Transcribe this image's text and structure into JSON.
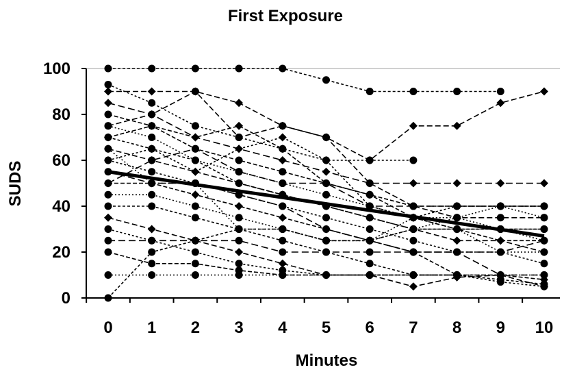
{
  "chart_data": {
    "type": "line",
    "title": "First Exposure",
    "xlabel": "Minutes",
    "ylabel": "SUDS",
    "xlim": [
      0,
      10
    ],
    "ylim": [
      0,
      100
    ],
    "x_ticks": [
      "0",
      "1",
      "2",
      "3",
      "4",
      "5",
      "6",
      "7",
      "8",
      "9",
      "10"
    ],
    "y_ticks": [
      "0",
      "20",
      "40",
      "60",
      "80",
      "100"
    ],
    "grid": "top border only",
    "legend": "none",
    "colors": {
      "series": "#000000",
      "axis": "#000000",
      "frame": "#a0a0a0"
    },
    "x": [
      0,
      1,
      2,
      3,
      4,
      5,
      6,
      7,
      8,
      9,
      10
    ],
    "trend_line": {
      "x": [
        0,
        10
      ],
      "y": [
        55,
        27
      ]
    },
    "series": [
      {
        "marker": "circle",
        "values": [
          100,
          100,
          100,
          100,
          100,
          95,
          90,
          90,
          90,
          90,
          null
        ]
      },
      {
        "marker": "diamond",
        "values": [
          90,
          90,
          90,
          85,
          75,
          70,
          60,
          75,
          75,
          85,
          90
        ]
      },
      {
        "marker": "circle",
        "values": [
          93,
          85,
          75,
          70,
          65,
          60,
          60,
          60,
          null,
          null,
          null
        ]
      },
      {
        "marker": "diamond",
        "values": [
          85,
          80,
          70,
          65,
          60,
          55,
          50,
          50,
          50,
          50,
          50
        ]
      },
      {
        "marker": "circle",
        "values": [
          80,
          75,
          65,
          60,
          55,
          50,
          45,
          40,
          40,
          40,
          40
        ]
      },
      {
        "marker": "circle",
        "values": [
          75,
          70,
          60,
          55,
          50,
          45,
          40,
          35,
          35,
          30,
          25
        ]
      },
      {
        "marker": "circle",
        "values": [
          70,
          65,
          60,
          50,
          45,
          40,
          35,
          30,
          30,
          30,
          30
        ]
      },
      {
        "marker": "diamond",
        "values": [
          65,
          60,
          55,
          50,
          45,
          40,
          35,
          30,
          25,
          25,
          20
        ]
      },
      {
        "marker": "circle",
        "values": [
          60,
          55,
          50,
          45,
          40,
          35,
          30,
          25,
          20,
          20,
          15
        ]
      },
      {
        "marker": "circle",
        "values": [
          55,
          50,
          50,
          45,
          40,
          30,
          25,
          20,
          20,
          10,
          10
        ]
      },
      {
        "marker": "diamond",
        "values": [
          50,
          50,
          45,
          40,
          35,
          30,
          25,
          20,
          10,
          10,
          8
        ]
      },
      {
        "marker": "circle",
        "values": [
          45,
          45,
          40,
          35,
          30,
          25,
          25,
          30,
          35,
          40,
          35
        ]
      },
      {
        "marker": "circle",
        "values": [
          40,
          40,
          35,
          30,
          25,
          20,
          15,
          10,
          10,
          8,
          6
        ]
      },
      {
        "marker": "diamond",
        "values": [
          35,
          30,
          25,
          20,
          15,
          10,
          10,
          5,
          9,
          10,
          5
        ]
      },
      {
        "marker": "circle",
        "values": [
          30,
          25,
          20,
          15,
          12,
          10,
          10,
          10,
          10,
          7,
          5
        ]
      },
      {
        "marker": "circle",
        "values": [
          25,
          25,
          25,
          25,
          20,
          20,
          20,
          20,
          20,
          20,
          25
        ]
      },
      {
        "marker": "circle",
        "values": [
          20,
          15,
          15,
          12,
          10,
          10,
          10,
          10,
          10,
          null,
          null
        ]
      },
      {
        "marker": "circle",
        "values": [
          10,
          10,
          10,
          10,
          10,
          10,
          10,
          10,
          10,
          10,
          10
        ]
      },
      {
        "marker": "circle",
        "values": [
          0,
          20,
          25,
          30,
          30,
          25,
          25,
          30,
          30,
          30,
          30
        ]
      },
      {
        "marker": "circle",
        "values": [
          75,
          80,
          90,
          70,
          75,
          70,
          50,
          40,
          35,
          35,
          35
        ]
      },
      {
        "marker": "diamond",
        "values": [
          60,
          65,
          55,
          65,
          70,
          60,
          40,
          35,
          40,
          40,
          40
        ]
      },
      {
        "marker": "circle",
        "values": [
          50,
          60,
          65,
          55,
          50,
          50,
          40,
          40,
          40,
          40,
          40
        ]
      },
      {
        "marker": "diamond",
        "values": [
          70,
          75,
          70,
          75,
          65,
          50,
          45,
          35,
          30,
          25,
          25
        ]
      },
      {
        "marker": "circle",
        "values": [
          65,
          50,
          50,
          30,
          30,
          25,
          25,
          35,
          30,
          20,
          20
        ]
      }
    ]
  }
}
